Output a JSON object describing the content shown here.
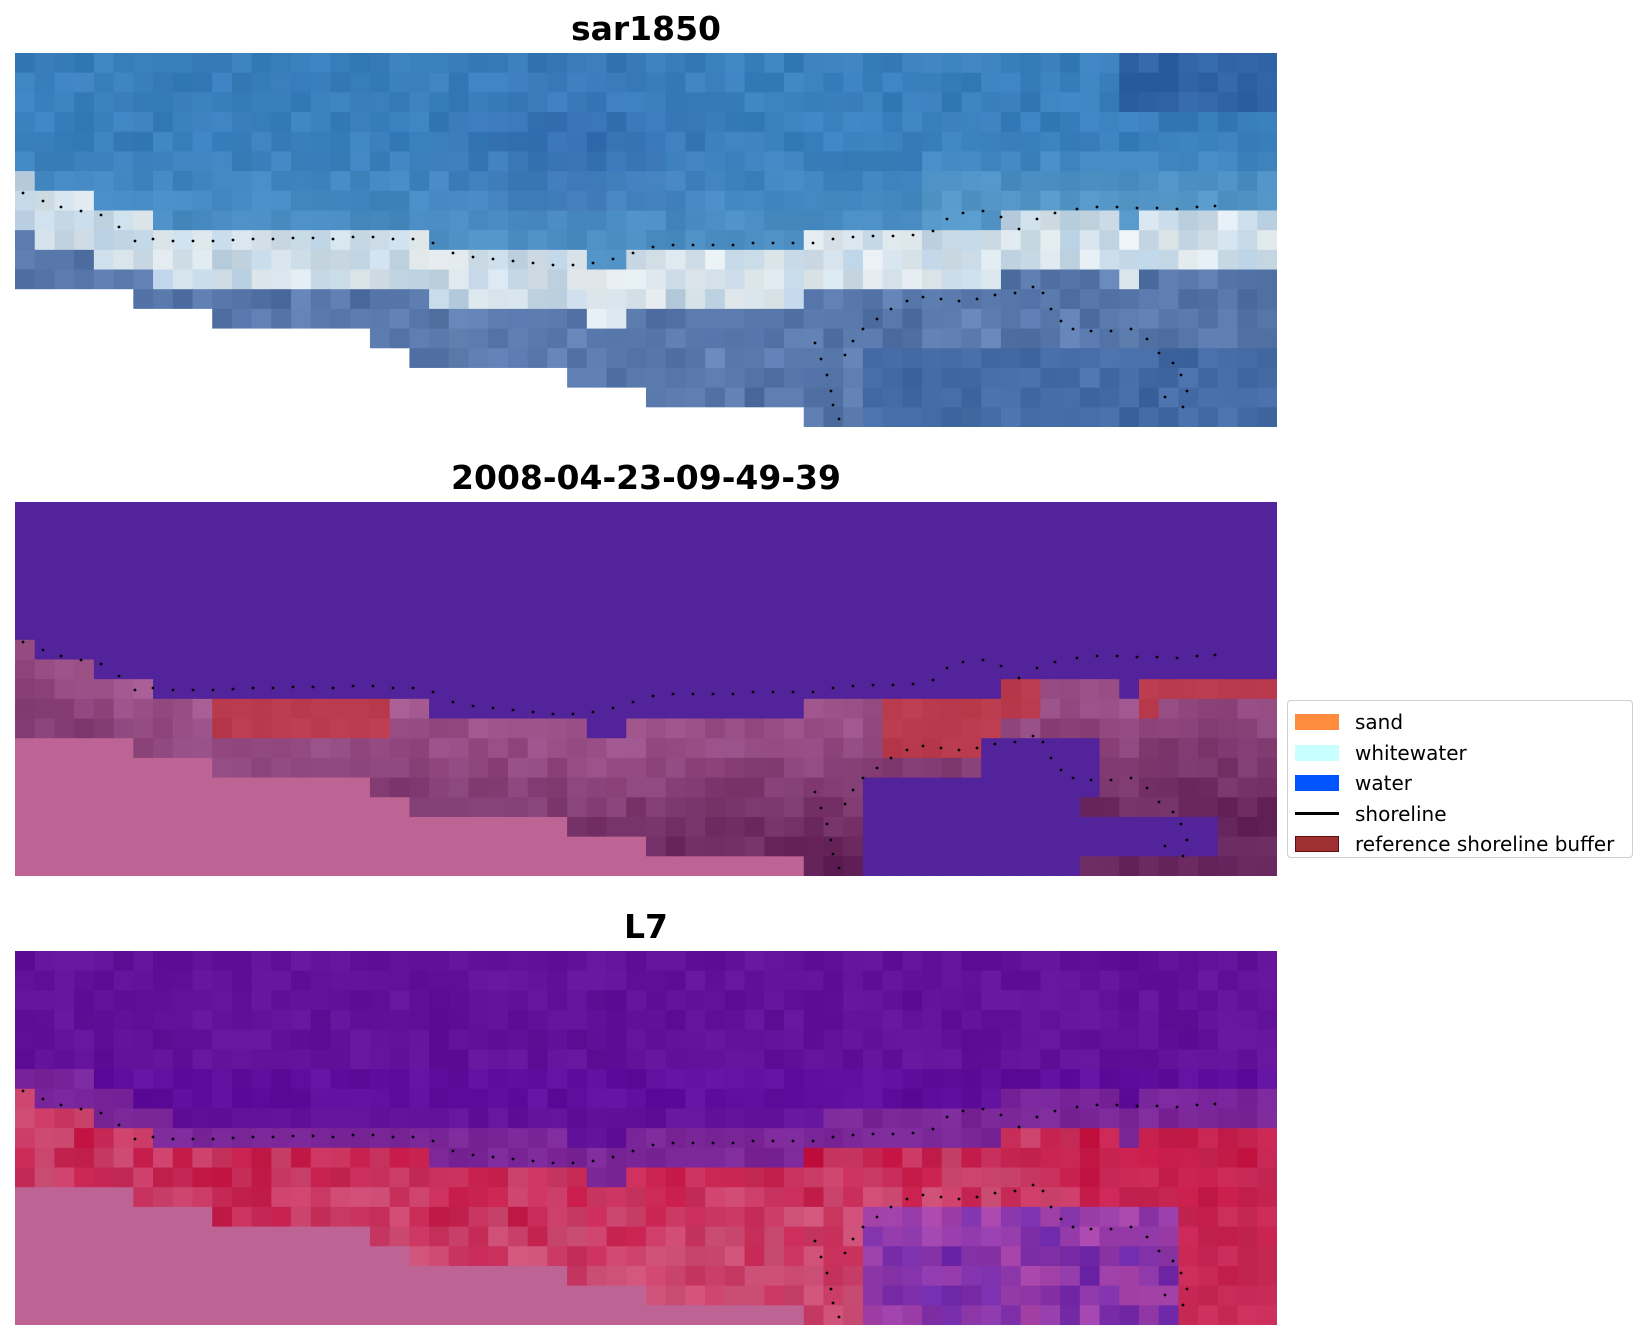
{
  "panels": [
    {
      "title": "sar1850",
      "layer": "rgb"
    },
    {
      "title": "2008-04-23-09-49-39",
      "layer": "classification"
    },
    {
      "title": "L7",
      "layer": "index"
    }
  ],
  "legend": {
    "items": [
      {
        "label": "sand",
        "color": "#ff8c3c",
        "kind": "patch"
      },
      {
        "label": "whitewater",
        "color": "#c8ffff",
        "kind": "patch"
      },
      {
        "label": "water",
        "color": "#0055ff",
        "kind": "patch"
      },
      {
        "label": "shoreline",
        "color": "#000000",
        "kind": "line"
      },
      {
        "label": "reference shoreline buffer",
        "color": "#9e3032",
        "kind": "patch"
      }
    ]
  },
  "colors": {
    "ocean_blue": "#3b86c2",
    "whitewater": "#e8eef0",
    "surf_zone": "#4f6fa3",
    "class_water": "#52239a",
    "class_buffer": "#b93a4c",
    "class_land": "#bd6494",
    "index_water": "#64129a",
    "index_red": "#c41040",
    "nodata": "#ffffff"
  }
}
